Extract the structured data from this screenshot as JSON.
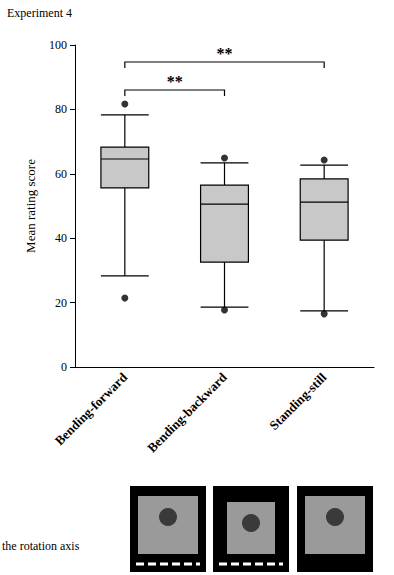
{
  "chart_data": {
    "type": "boxplot",
    "title": "Experiment 4",
    "y_label": "Mean rating score",
    "categories": [
      "Bending-forward",
      "Bending-backward",
      "Standing-still"
    ],
    "boxes": [
      [
        28.3,
        55.6,
        64.6,
        68.3,
        78.3
      ],
      [
        18.6,
        32.6,
        50.6,
        56.5,
        63.4
      ],
      [
        17.4,
        39.4,
        51.2,
        58.4,
        62.7
      ]
    ],
    "outliers": [
      [
        81.7,
        21.4
      ],
      [
        64.9,
        17.7
      ],
      [
        64.3,
        16.5
      ]
    ],
    "color": "#c8c8c8",
    "ylim": [
      0,
      100
    ],
    "yticks": [
      0,
      20,
      40,
      60,
      80,
      100
    ],
    "grid": false,
    "annotations": [
      {
        "from": "Bending-forward",
        "to": "Bending-backward",
        "label": "**"
      },
      {
        "from": "Bending-forward",
        "to": "Standing-still",
        "label": "**"
      }
    ],
    "footer": "the rotation axis"
  }
}
